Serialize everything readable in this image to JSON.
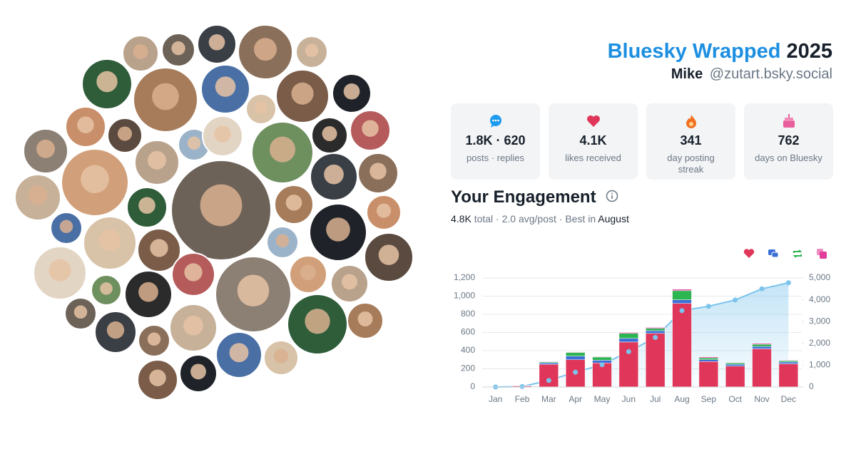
{
  "header": {
    "brand": "Bluesky Wrapped",
    "year": "2025",
    "name": "Mike",
    "handle": "@zutart.bsky.social"
  },
  "stats": [
    {
      "value": "1.8K · 620",
      "label": "posts · replies"
    },
    {
      "value": "4.1K",
      "label": "likes received"
    },
    {
      "value": "341",
      "label": "day posting streak"
    },
    {
      "value": "762",
      "label": "days on Bluesky"
    }
  ],
  "engagement": {
    "title": "Your Engagement",
    "summary": {
      "total": "4.8K",
      "text": "total · 2.0 avg/post · Best in",
      "best": "August"
    }
  },
  "chart_data": {
    "type": "bar",
    "stacked": true,
    "categories": [
      "Jan",
      "Feb",
      "Mar",
      "Apr",
      "May",
      "Jun",
      "Jul",
      "Aug",
      "Sep",
      "Oct",
      "Nov",
      "Dec"
    ],
    "series": [
      {
        "color": "#e0365a",
        "values": [
          2,
          12,
          250,
          300,
          265,
          495,
          590,
          920,
          280,
          230,
          420,
          255
        ]
      },
      {
        "color": "#3b6fd6",
        "values": [
          0,
          2,
          15,
          40,
          30,
          40,
          30,
          40,
          20,
          20,
          25,
          20
        ]
      },
      {
        "color": "#2db552",
        "values": [
          0,
          1,
          10,
          40,
          35,
          55,
          25,
          100,
          20,
          15,
          25,
          15
        ]
      },
      {
        "color": "#e23d9a",
        "values": [
          0,
          0,
          5,
          5,
          5,
          10,
          10,
          15,
          10,
          5,
          10,
          5
        ]
      },
      {
        "type": "line",
        "axis": "y2",
        "color": "#7cc4ec",
        "values": [
          0,
          20,
          300,
          680,
          1020,
          1620,
          2270,
          3500,
          3700,
          3990,
          4500,
          4780
        ]
      }
    ],
    "ylim": [
      0,
      1200
    ],
    "yticks": [
      0,
      200,
      400,
      600,
      800,
      {
        "value": 1000,
        "label": "1,000"
      },
      {
        "value": 1200,
        "label": "1,200"
      }
    ],
    "y2lim": [
      0,
      5000
    ],
    "y2ticks": [
      0,
      {
        "value": 1000,
        "label": "1,000"
      },
      {
        "value": 2000,
        "label": "2,000"
      },
      {
        "value": 3000,
        "label": "3,000"
      },
      {
        "value": 4000,
        "label": "4,000"
      },
      {
        "value": 5000,
        "label": "5,000"
      }
    ],
    "grid": true
  }
}
